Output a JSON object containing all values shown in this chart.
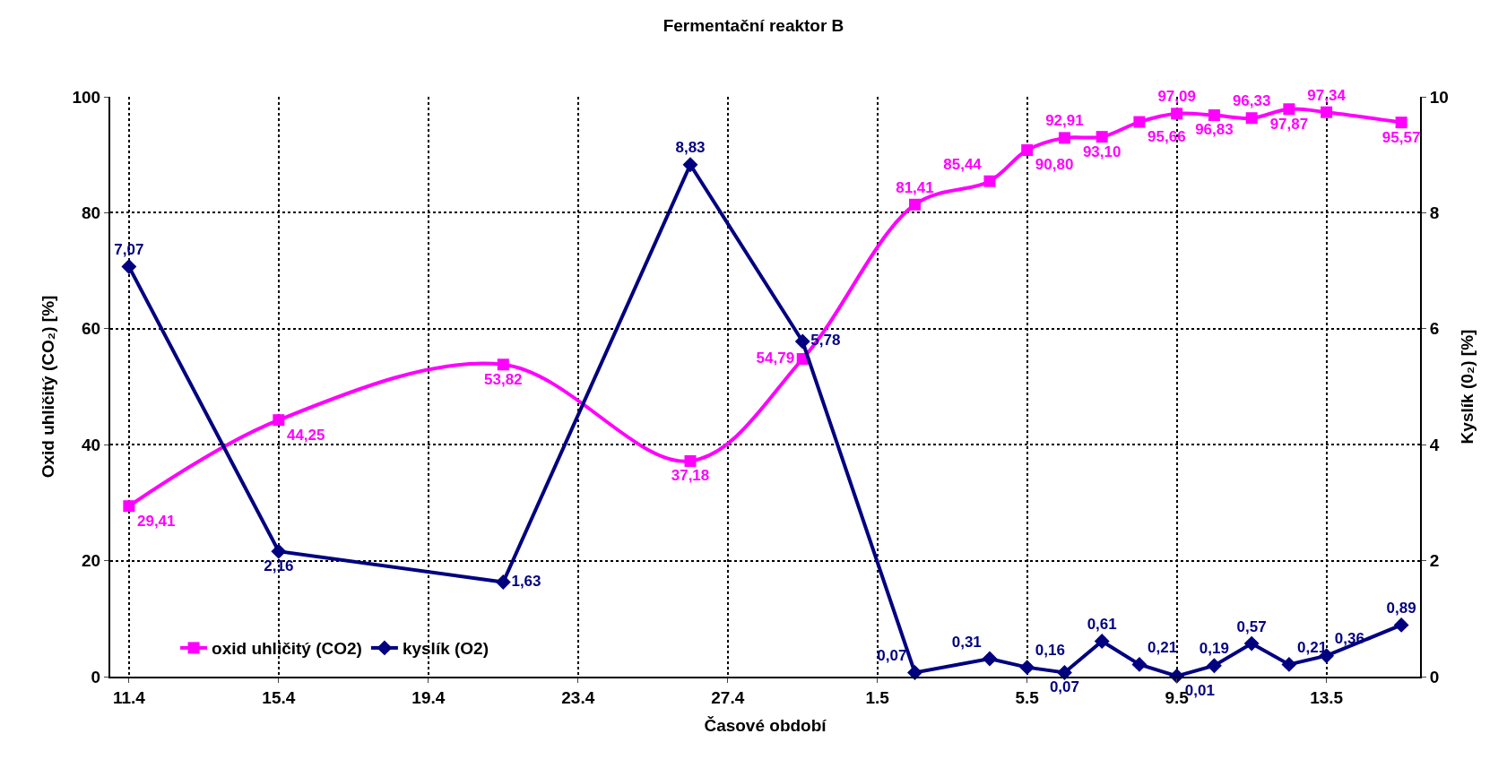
{
  "chart_data": {
    "type": "line",
    "title": "Fermentační reaktor B",
    "xlabel": "Časové období",
    "ylabel": "Oxid uhličitý (CO₂) [%]",
    "y2label": "Kyslík (0₂) [%]",
    "x": [
      "--04-11",
      "--04-15",
      "--04-21",
      "--04-26",
      "--04-29",
      "--05-02",
      "--05-04",
      "--05-05",
      "--05-06",
      "--05-07",
      "--05-08",
      "--05-09",
      "--05-10",
      "--05-11",
      "--05-12",
      "--05-13",
      "--05-15"
    ],
    "series": [
      {
        "name": "oxid uhličitý (CO2)",
        "color": "#ff00ff",
        "marker": "square",
        "values": [
          29.41,
          44.25,
          53.82,
          37.18,
          54.79,
          81.41,
          85.44,
          90.8,
          92.91,
          93.1,
          95.66,
          97.09,
          96.83,
          96.33,
          97.87,
          97.34,
          95.57
        ],
        "value_labels": [
          "29,41",
          "44,25",
          "53,82",
          "37,18",
          "54,79",
          "81,41",
          "85,44",
          "90,80",
          "92,91",
          "93,10",
          "95,66",
          "97,09",
          "96,83",
          "96,33",
          "97,87",
          "97,34",
          "95,57"
        ]
      },
      {
        "name": "kyslík (O2)",
        "color": "#000080",
        "marker": "diamond",
        "axis": "y2",
        "values": [
          7.07,
          2.16,
          1.63,
          8.83,
          5.78,
          0.07,
          0.31,
          0.16,
          0.07,
          0.61,
          0.21,
          0.01,
          0.19,
          0.57,
          0.21,
          0.36,
          0.89
        ],
        "value_labels": [
          "7,07",
          "2,16",
          "1,63",
          "8,83",
          "5,78",
          "0,07",
          "0,31",
          "0,16",
          "0,07",
          "0,61",
          "0,21",
          "0,01",
          "0,19",
          "0,57",
          "0,21",
          "0,36",
          "0,89"
        ]
      }
    ],
    "xlim": [
      "--04-10T12:00",
      "--05-15T12:00"
    ],
    "xticks": [
      {
        "value": "--04-11",
        "label": "11.4"
      },
      {
        "value": "--04-15",
        "label": "15.4"
      },
      {
        "value": "--04-19",
        "label": "19.4"
      },
      {
        "value": "--04-23",
        "label": "23.4"
      },
      {
        "value": "--04-27",
        "label": "27.4"
      },
      {
        "value": "--05-01",
        "label": "1.5"
      },
      {
        "value": "--05-05",
        "label": "5.5"
      },
      {
        "value": "--05-09",
        "label": "9.5"
      },
      {
        "value": "--05-13",
        "label": "13.5"
      }
    ],
    "ylim": [
      0,
      100
    ],
    "yticks": [
      0,
      20,
      40,
      60,
      80,
      100
    ],
    "y2lim": [
      0,
      10
    ],
    "y2ticks": [
      0,
      2,
      4,
      6,
      8,
      10
    ],
    "grid": true,
    "legend": "bottom left",
    "line_style": "solid"
  }
}
